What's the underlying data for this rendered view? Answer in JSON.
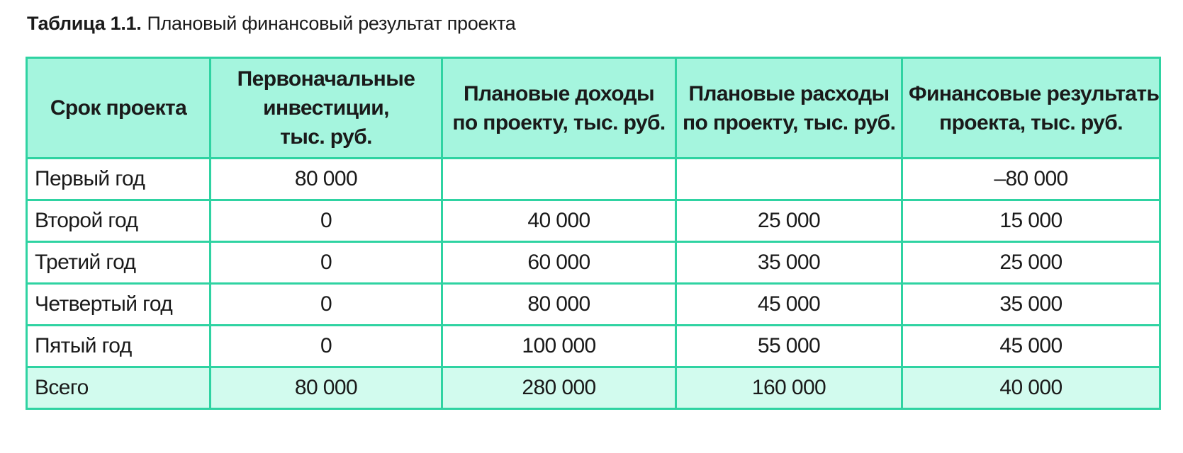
{
  "caption": {
    "label": "Таблица 1.1.",
    "text": "Плановый финансовый результат проекта"
  },
  "header": {
    "term": "Срок проекта",
    "investments": [
      "Первоначальные",
      "инвестиции,",
      "тыс. руб."
    ],
    "income": [
      "Плановые доходы",
      "по проекту, тыс. руб."
    ],
    "expenses": [
      "Плановые расходы",
      "по проекту, тыс. руб."
    ],
    "results": [
      "Финансовые результаты",
      "проекта, тыс. руб."
    ]
  },
  "rows": [
    {
      "term": "Первый год",
      "investments": "80 000",
      "income": "",
      "expenses": "",
      "results": "–80 000"
    },
    {
      "term": "Второй год",
      "investments": "0",
      "income": "40 000",
      "expenses": "25 000",
      "results": "15 000"
    },
    {
      "term": "Третий год",
      "investments": "0",
      "income": "60 000",
      "expenses": "35 000",
      "results": "25 000"
    },
    {
      "term": "Четвертый год",
      "investments": "0",
      "income": "80 000",
      "expenses": "45 000",
      "results": "35 000"
    },
    {
      "term": "Пятый год",
      "investments": "0",
      "income": "100 000",
      "expenses": "55 000",
      "results": "45 000"
    }
  ],
  "total": {
    "term": "Всего",
    "investments": "80 000",
    "income": "280 000",
    "expenses": "160 000",
    "results": "40 000"
  },
  "colors": {
    "border": "#2fd3a2",
    "header_bg": "#a5f5de",
    "total_bg": "#d2fbee"
  }
}
